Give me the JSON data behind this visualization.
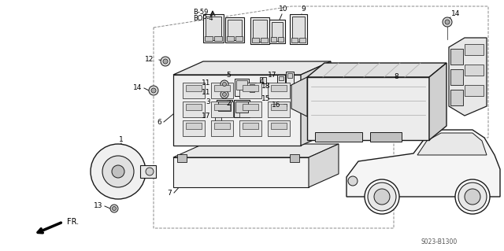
{
  "bg_color": "#ffffff",
  "line_color": "#1a1a1a",
  "figsize": [
    6.4,
    3.19
  ],
  "dpi": 100,
  "part_number": "S023-B1300",
  "fr_label": "FR."
}
